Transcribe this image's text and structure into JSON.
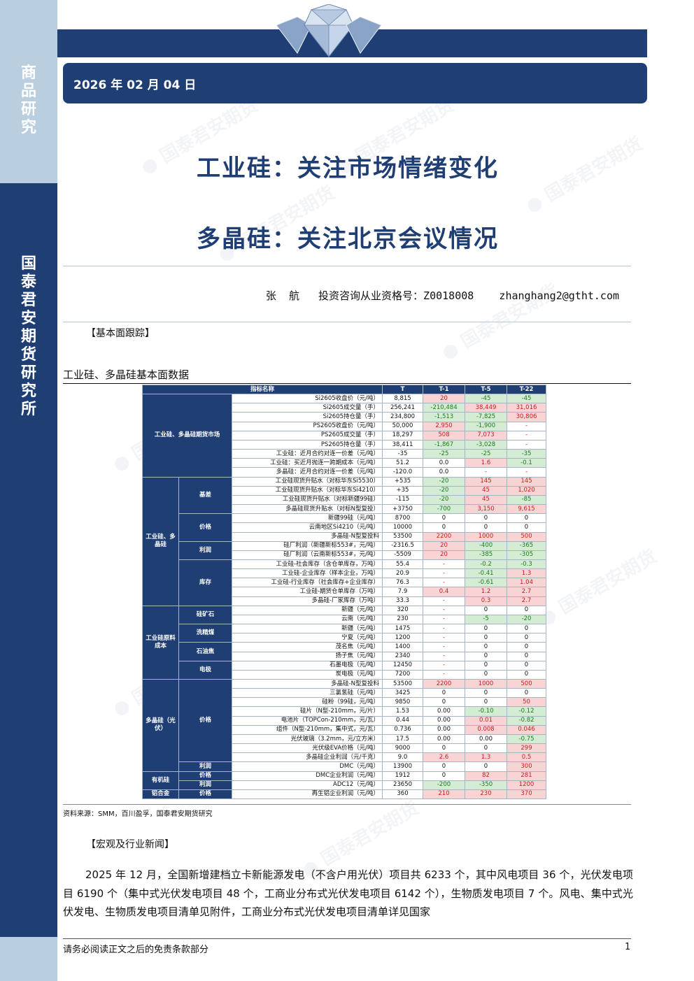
{
  "sidebar": {
    "category": "商品研究",
    "org": "国泰君安期货研究所"
  },
  "header": {
    "date": "2026 年 02 月 04 日"
  },
  "titles": {
    "line1": "工业硅：关注市场情绪变化",
    "line2": "多晶硅：关注北京会议情况"
  },
  "author": {
    "line": "张  航   投资咨询从业资格号：Z0018008    zhanghang2@gtht.com"
  },
  "sections": {
    "fundamentals": "【基本面跟踪】",
    "news": "【宏观及行业新闻】"
  },
  "table": {
    "caption": "工业硅、多晶硅基本面数据",
    "headers": [
      "指标名称",
      "T",
      "T-1",
      "T-5",
      "T-22"
    ],
    "groups": {
      "g1": "工业硅、多晶硅期货市场",
      "g2": "工业硅、多晶硅",
      "g3": "工业硅原料成本",
      "g4": "多晶硅（光伏）",
      "g5": "有机硅",
      "g6": "铝合金"
    },
    "subs": {
      "jicha": "基差",
      "jiage": "价格",
      "lirun": "利润",
      "kucun": "库存",
      "guikuang": "硅矿石",
      "xijingmei": "洗精煤",
      "shiyoujiao": "石油焦",
      "dianji": "电极",
      "pv_jiage": "价格",
      "pv_lirun": "利润",
      "yj_jiage": "价格",
      "yj_lirun": "利润",
      "al_jiage": "价格",
      "al_lirun": "利润"
    },
    "rows": [
      {
        "name": "Si2605收盘价（元/吨）",
        "t": "8,815",
        "t1": "20",
        "t5": "-45",
        "t22": "-45",
        "c1": "pos",
        "c5": "neg",
        "c22": "neg"
      },
      {
        "name": "Si2605成交量（手）",
        "t": "256,241",
        "t1": "-210,484",
        "t5": "38,449",
        "t22": "31,016",
        "c1": "neg",
        "c5": "pos",
        "c22": "pos"
      },
      {
        "name": "Si2605持仓量（手）",
        "t": "234,800",
        "t1": "-1,513",
        "t5": "-7,825",
        "t22": "30,806",
        "c1": "neg",
        "c5": "neg",
        "c22": "pos"
      },
      {
        "name": "PS2605收盘价（元/吨）",
        "t": "50,000",
        "t1": "2,950",
        "t5": "-1,900",
        "t22": "-",
        "c1": "pos",
        "c5": "neg",
        "c22": "dash"
      },
      {
        "name": "PS2605成交量（手）",
        "t": "18,297",
        "t1": "508",
        "t5": "7,073",
        "t22": "-",
        "c1": "pos",
        "c5": "pos",
        "c22": "dash"
      },
      {
        "name": "PS2605持仓量（手）",
        "t": "38,411",
        "t1": "-1,867",
        "t5": "-3,028",
        "t22": "-",
        "c1": "neg",
        "c5": "neg",
        "c22": "dash"
      },
      {
        "name": "工业硅：近月合约对连一价差（元/吨）",
        "t": "-35",
        "t1": "-25",
        "t5": "-25",
        "t22": "-35",
        "c1": "neg",
        "c5": "neg",
        "c22": "neg"
      },
      {
        "name": "工业硅：买近月抛连一跨期成本（元/吨）",
        "t": "51.2",
        "t1": "0.0",
        "t5": "1.6",
        "t22": "-0.1",
        "c1": "",
        "c5": "pos",
        "c22": "neg"
      },
      {
        "name": "多晶硅：近月合约对连一价差（元/吨）",
        "t": "-120.0",
        "t1": "0.0",
        "t5": "-",
        "t22": "-",
        "c1": "",
        "c5": "dash",
        "c22": "dash"
      },
      {
        "name": "工业硅现货升贴水（对标华东Si5530）",
        "t": "+535",
        "t1": "-20",
        "t5": "145",
        "t22": "145",
        "c1": "neg",
        "c5": "pos",
        "c22": "pos"
      },
      {
        "name": "工业硅现货升贴水（对标华东Si4210）",
        "t": "+35",
        "t1": "-20",
        "t5": "45",
        "t22": "1,020",
        "c1": "neg",
        "c5": "pos",
        "c22": "pos"
      },
      {
        "name": "工业硅现货升贴水（对标新疆99硅）",
        "t": "-115",
        "t1": "-20",
        "t5": "45",
        "t22": "-85",
        "c1": "neg",
        "c5": "pos",
        "c22": "neg"
      },
      {
        "name": "多晶硅现货升贴水（对标N型复投）",
        "t": "+3750",
        "t1": "-700",
        "t5": "3,150",
        "t22": "9,615",
        "c1": "neg",
        "c5": "pos",
        "c22": "pos"
      },
      {
        "name": "新疆99硅（元/吨）",
        "t": "8700",
        "t1": "0",
        "t5": "0",
        "t22": "0",
        "c1": "",
        "c5": "",
        "c22": ""
      },
      {
        "name": "云南地区Si4210（元/吨）",
        "t": "10000",
        "t1": "0",
        "t5": "0",
        "t22": "0",
        "c1": "",
        "c5": "",
        "c22": ""
      },
      {
        "name": "多晶硅-N型复投料",
        "t": "53500",
        "t1": "2200",
        "t5": "1000",
        "t22": "500",
        "c1": "pos",
        "c5": "pos",
        "c22": "pos"
      },
      {
        "name": "硅厂利润（新疆新标553#，元/吨）",
        "t": "-2316.5",
        "t1": "20",
        "t5": "-400",
        "t22": "-365",
        "c1": "pos",
        "c5": "neg",
        "c22": "neg"
      },
      {
        "name": "硅厂利润（云南新标553#，元/吨）",
        "t": "-5509",
        "t1": "20",
        "t5": "-385",
        "t22": "-305",
        "c1": "pos",
        "c5": "neg",
        "c22": "neg"
      },
      {
        "name": "工业硅-社会库存（含仓单库存，万吨）",
        "t": "55.4",
        "t1": "-",
        "t5": "-0.2",
        "t22": "-0.3",
        "c1": "dash",
        "c5": "neg",
        "c22": "neg"
      },
      {
        "name": "工业硅-企业库存（样本企业，万吨）",
        "t": "20.9",
        "t1": "-",
        "t5": "-0.41",
        "t22": "1.3",
        "c1": "dash",
        "c5": "neg",
        "c22": "pos"
      },
      {
        "name": "工业硅-行业库存（社会库存+企业库存）",
        "t": "76.3",
        "t1": "-",
        "t5": "-0.61",
        "t22": "1.04",
        "c1": "dash",
        "c5": "neg",
        "c22": "pos"
      },
      {
        "name": "工业硅-期货仓单库存（万吨）",
        "t": "7.9",
        "t1": "0.4",
        "t5": "1.2",
        "t22": "2.7",
        "c1": "pos",
        "c5": "pos",
        "c22": "pos"
      },
      {
        "name": "多晶硅-厂家库存（万吨）",
        "t": "33.3",
        "t1": "-",
        "t5": "0.3",
        "t22": "2.7",
        "c1": "dash",
        "c5": "pos",
        "c22": "pos"
      },
      {
        "name": "新疆（元/吨）",
        "t": "320",
        "t1": "-",
        "t5": "0",
        "t22": "0",
        "c1": "dash",
        "c5": "",
        "c22": ""
      },
      {
        "name": "云南（元/吨）",
        "t": "230",
        "t1": "-",
        "t5": "-5",
        "t22": "-20",
        "c1": "dash",
        "c5": "neg",
        "c22": "neg"
      },
      {
        "name": "新疆（元/吨）",
        "t": "1475",
        "t1": "-",
        "t5": "0",
        "t22": "0",
        "c1": "dash",
        "c5": "",
        "c22": ""
      },
      {
        "name": "宁夏（元/吨）",
        "t": "1200",
        "t1": "-",
        "t5": "0",
        "t22": "0",
        "c1": "dash",
        "c5": "",
        "c22": ""
      },
      {
        "name": "茂名焦（元/吨）",
        "t": "1400",
        "t1": "-",
        "t5": "0",
        "t22": "0",
        "c1": "dash",
        "c5": "",
        "c22": ""
      },
      {
        "name": "扬子焦（元/吨）",
        "t": "2340",
        "t1": "-",
        "t5": "0",
        "t22": "0",
        "c1": "dash",
        "c5": "",
        "c22": ""
      },
      {
        "name": "石墨电极（元/吨）",
        "t": "12450",
        "t1": "-",
        "t5": "0",
        "t22": "0",
        "c1": "dash",
        "c5": "",
        "c22": ""
      },
      {
        "name": "炭电极（元/吨）",
        "t": "7200",
        "t1": "-",
        "t5": "0",
        "t22": "0",
        "c1": "dash",
        "c5": "",
        "c22": ""
      },
      {
        "name": "多晶硅-N型复投料",
        "t": "53500",
        "t1": "2200",
        "t5": "1000",
        "t22": "500",
        "c1": "pos",
        "c5": "pos",
        "c22": "pos"
      },
      {
        "name": "三氯氢硅（元/吨）",
        "t": "3425",
        "t1": "0",
        "t5": "0",
        "t22": "0",
        "c1": "",
        "c5": "",
        "c22": ""
      },
      {
        "name": "硅粉（99硅，元/吨）",
        "t": "9850",
        "t1": "0",
        "t5": "0",
        "t22": "50",
        "c1": "",
        "c5": "",
        "c22": "pos"
      },
      {
        "name": "硅片（N型-210mm，元/片）",
        "t": "1.53",
        "t1": "0.00",
        "t5": "-0.10",
        "t22": "-0.12",
        "c1": "",
        "c5": "neg",
        "c22": "neg"
      },
      {
        "name": "电池片（TOPCon-210mm，元/瓦）",
        "t": "0.44",
        "t1": "0.00",
        "t5": "0.01",
        "t22": "-0.82",
        "c1": "",
        "c5": "pos",
        "c22": "neg"
      },
      {
        "name": "组件（N型-210mm，集中式，元/瓦）",
        "t": "0.736",
        "t1": "0.00",
        "t5": "0.008",
        "t22": "0.046",
        "c1": "",
        "c5": "pos",
        "c22": "pos"
      },
      {
        "name": "光伏玻璃（3.2mm，元/立方米）",
        "t": "17.5",
        "t1": "0.00",
        "t5": "0.00",
        "t22": "-0.75",
        "c1": "",
        "c5": "",
        "c22": "neg"
      },
      {
        "name": "光伏级EVA价格（元/吨）",
        "t": "9000",
        "t1": "0",
        "t5": "0",
        "t22": "299",
        "c1": "",
        "c5": "",
        "c22": "pos"
      },
      {
        "name": "多晶硅企业利润（元/千克）",
        "t": "9.0",
        "t1": "2.6",
        "t5": "1.3",
        "t22": "0.5",
        "c1": "pos",
        "c5": "pos",
        "c22": "pos"
      },
      {
        "name": "DMC（元/吨）",
        "t": "13900",
        "t1": "0",
        "t5": "0",
        "t22": "300",
        "c1": "",
        "c5": "",
        "c22": "pos"
      },
      {
        "name": "DMC企业利润（元/吨）",
        "t": "1912",
        "t1": "0",
        "t5": "82",
        "t22": "281",
        "c1": "",
        "c5": "pos",
        "c22": "pos"
      },
      {
        "name": "ADC12（元/吨）",
        "t": "23650",
        "t1": "-200",
        "t5": "-350",
        "t22": "1200",
        "c1": "neg",
        "c5": "neg",
        "c22": "pos"
      },
      {
        "name": "再生铝企业利润（元/吨）",
        "t": "360",
        "t1": "210",
        "t5": "230",
        "t22": "370",
        "c1": "pos",
        "c5": "pos",
        "c22": "pos"
      }
    ],
    "source": "资料来源：SMM，百川盈孚，国泰君安期货研究"
  },
  "news": {
    "paragraph": "2025 年 12 月，全国新增建档立卡新能源发电（不含户用光伏）项目共 6233 个，其中风电项目 36 个，光伏发电项目 6190 个（集中式光伏发电项目 48 个，工商业分布式光伏发电项目 6142 个），生物质发电项目 7 个。风电、集中式光伏发电、生物质发电项目清单见附件，工商业分布式光伏发电项目清单详见国家"
  },
  "footer": {
    "disclaimer": "请务必阅读正文之后的免责条款部分",
    "page": "1"
  },
  "colors": {
    "brand_navy": "#1f3e74",
    "sidebar_light": "#b9cfe0",
    "up_red": "#c62020",
    "down_green": "#1e7a1e"
  }
}
